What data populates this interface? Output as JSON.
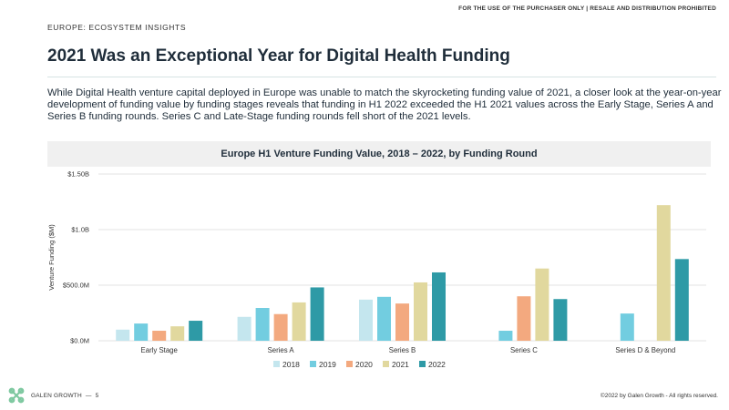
{
  "header": {
    "notice": "FOR THE USE OF THE PURCHASER ONLY | RESALE AND DISTRIBUTION PROHIBITED",
    "section": "EUROPE: ECOSYSTEM INSIGHTS",
    "title": "2021 Was an Exceptional Year for Digital Health Funding",
    "intro": "While Digital Health venture capital deployed in Europe was unable to match the skyrocketing funding value of 2021, a closer look at the year-on-year development of funding value by funding stages reveals that funding in H1 2022 exceeded the H1 2021 values across the Early Stage, Series A and Series B funding rounds. Series C and Late-Stage funding rounds fell short of the 2021 levels."
  },
  "footer": {
    "brand": "GALEN GROWTH",
    "separator": "—",
    "page": "5",
    "copyright": "©2022 by Galen Growth  - All rights reserved.",
    "logo_color": "#7ec8a0"
  },
  "chart_data": {
    "type": "bar",
    "title": "Europe H1 Venture Funding Value, 2018 – 2022, by Funding Round",
    "ylabel": "Venture Funding ($M)",
    "xlabel": "",
    "ylim": [
      0,
      1500
    ],
    "yticks": [
      0,
      500,
      1000,
      1500
    ],
    "ytick_labels": [
      "$0.0M",
      "$500.0M",
      "$1.0B",
      "$1.50B"
    ],
    "grid": true,
    "legend_position": "bottom",
    "categories": [
      "Early Stage",
      "Series A",
      "Series B",
      "Series C",
      "Series D & Beyond"
    ],
    "series": [
      {
        "name": "2018",
        "color": "#c4e6ee",
        "values": [
          100,
          215,
          370,
          0,
          0
        ]
      },
      {
        "name": "2019",
        "color": "#72cde0",
        "values": [
          155,
          295,
          395,
          90,
          245
        ]
      },
      {
        "name": "2020",
        "color": "#f3a97f",
        "values": [
          90,
          240,
          335,
          400,
          0
        ]
      },
      {
        "name": "2021",
        "color": "#e1d89e",
        "values": [
          130,
          345,
          525,
          650,
          1220
        ]
      },
      {
        "name": "2022",
        "color": "#2e9aa6",
        "values": [
          180,
          480,
          615,
          375,
          735
        ]
      }
    ]
  }
}
